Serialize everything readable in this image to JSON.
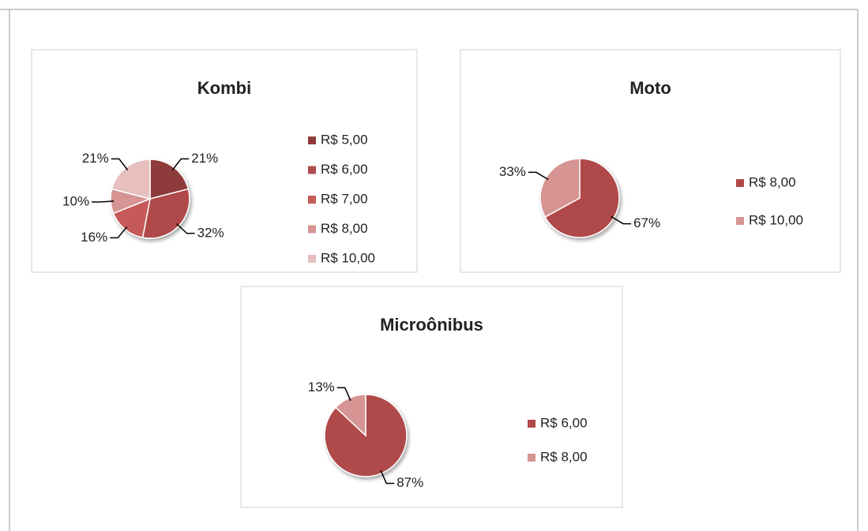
{
  "chart_data": [
    {
      "type": "pie",
      "title": "Kombi",
      "categories": [
        "R$ 5,00",
        "R$ 6,00",
        "R$ 7,00",
        "R$ 8,00",
        "R$ 10,00"
      ],
      "values": [
        21,
        32,
        16,
        10,
        21
      ],
      "value_labels": [
        "21%",
        "32%",
        "16%",
        "10%",
        "21%"
      ],
      "colors": [
        "#8e3b3a",
        "#b0494a",
        "#c65a58",
        "#d69492",
        "#e6bfbe"
      ],
      "legend": "right"
    },
    {
      "type": "pie",
      "title": "Moto",
      "categories": [
        "R$ 8,00",
        "R$ 10,00"
      ],
      "values": [
        67,
        33
      ],
      "value_labels": [
        "67%",
        "33%"
      ],
      "colors": [
        "#b0494a",
        "#d69492"
      ],
      "legend": "right"
    },
    {
      "type": "pie",
      "title": "Microônibus",
      "categories": [
        "R$ 6,00",
        "R$ 8,00"
      ],
      "values": [
        87,
        13
      ],
      "value_labels": [
        "87%",
        "13%"
      ],
      "colors": [
        "#b0494a",
        "#d69492"
      ],
      "legend": "right"
    }
  ]
}
